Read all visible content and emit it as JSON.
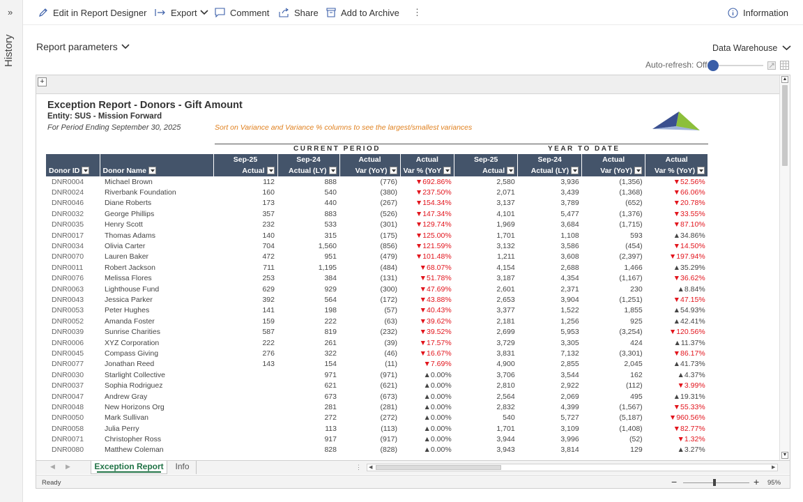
{
  "history": {
    "expand_glyph": "»",
    "label": "History"
  },
  "toolbar": {
    "edit_label": "Edit in Report Designer",
    "export_label": "Export",
    "comment_label": "Comment",
    "share_label": "Share",
    "archive_label": "Add to Archive",
    "more_glyph": "⋮",
    "info_label": "Information"
  },
  "params": {
    "label": "Report parameters"
  },
  "data_source": {
    "label": "Data Warehouse"
  },
  "auto_refresh": {
    "label": "Auto-refresh: Off",
    "state": "off"
  },
  "sheet": {
    "expand_glyph": "+"
  },
  "report": {
    "title": "Exception Report - Donors - Gift Amount",
    "entity": "Entity: SUS - Mission Forward",
    "period": "For Period Ending September 30, 2025",
    "note": "Sort on Variance and Variance % columns to see the largest/smallest variances",
    "band_current": "CURRENT PERIOD",
    "band_ytd": "YEAR TO DATE",
    "columns_top": [
      "",
      "",
      "Sep-25",
      "Sep-24",
      "Actual",
      "Actual",
      "Sep-25",
      "Sep-24",
      "Actual",
      "Actual"
    ],
    "columns": [
      "Donor ID",
      "Donor Name",
      "Actual",
      "Actual (LY)",
      "Var (YoY)",
      "Var % (YoY",
      "Actual",
      "Actual (LY)",
      "Var (YoY)",
      "Var % (YoY)"
    ]
  },
  "rows": [
    [
      "DNR0004",
      "Michael Brown",
      "112",
      "888",
      "(776)",
      "▼692.86%",
      "2,580",
      "3,936",
      "(1,356)",
      "▼52.56%"
    ],
    [
      "DNR0024",
      "Riverbank Foundation",
      "160",
      "540",
      "(380)",
      "▼237.50%",
      "2,071",
      "3,439",
      "(1,368)",
      "▼66.06%"
    ],
    [
      "DNR0046",
      "Diane Roberts",
      "173",
      "440",
      "(267)",
      "▼154.34%",
      "3,137",
      "3,789",
      "(652)",
      "▼20.78%"
    ],
    [
      "DNR0032",
      "George Phillips",
      "357",
      "883",
      "(526)",
      "▼147.34%",
      "4,101",
      "5,477",
      "(1,376)",
      "▼33.55%"
    ],
    [
      "DNR0035",
      "Henry Scott",
      "232",
      "533",
      "(301)",
      "▼129.74%",
      "1,969",
      "3,684",
      "(1,715)",
      "▼87.10%"
    ],
    [
      "DNR0017",
      "Thomas Adams",
      "140",
      "315",
      "(175)",
      "▼125.00%",
      "1,701",
      "1,108",
      "593",
      "▲34.86%"
    ],
    [
      "DNR0034",
      "Olivia Carter",
      "704",
      "1,560",
      "(856)",
      "▼121.59%",
      "3,132",
      "3,586",
      "(454)",
      "▼14.50%"
    ],
    [
      "DNR0070",
      "Lauren Baker",
      "472",
      "951",
      "(479)",
      "▼101.48%",
      "1,211",
      "3,608",
      "(2,397)",
      "▼197.94%"
    ],
    [
      "DNR0011",
      "Robert Jackson",
      "711",
      "1,195",
      "(484)",
      "▼68.07%",
      "4,154",
      "2,688",
      "1,466",
      "▲35.29%"
    ],
    [
      "DNR0076",
      "Melissa Flores",
      "253",
      "384",
      "(131)",
      "▼51.78%",
      "3,187",
      "4,354",
      "(1,167)",
      "▼36.62%"
    ],
    [
      "DNR0063",
      "Lighthouse Fund",
      "629",
      "929",
      "(300)",
      "▼47.69%",
      "2,601",
      "2,371",
      "230",
      "▲8.84%"
    ],
    [
      "DNR0043",
      "Jessica Parker",
      "392",
      "564",
      "(172)",
      "▼43.88%",
      "2,653",
      "3,904",
      "(1,251)",
      "▼47.15%"
    ],
    [
      "DNR0053",
      "Peter Hughes",
      "141",
      "198",
      "(57)",
      "▼40.43%",
      "3,377",
      "1,522",
      "1,855",
      "▲54.93%"
    ],
    [
      "DNR0052",
      "Amanda Foster",
      "159",
      "222",
      "(63)",
      "▼39.62%",
      "2,181",
      "1,256",
      "925",
      "▲42.41%"
    ],
    [
      "DNR0039",
      "Sunrise Charities",
      "587",
      "819",
      "(232)",
      "▼39.52%",
      "2,699",
      "5,953",
      "(3,254)",
      "▼120.56%"
    ],
    [
      "DNR0006",
      "XYZ Corporation",
      "222",
      "261",
      "(39)",
      "▼17.57%",
      "3,729",
      "3,305",
      "424",
      "▲11.37%"
    ],
    [
      "DNR0045",
      "Compass Giving",
      "276",
      "322",
      "(46)",
      "▼16.67%",
      "3,831",
      "7,132",
      "(3,301)",
      "▼86.17%"
    ],
    [
      "DNR0077",
      "Jonathan Reed",
      "143",
      "154",
      "(11)",
      "▼7.69%",
      "4,900",
      "2,855",
      "2,045",
      "▲41.73%"
    ],
    [
      "DNR0030",
      "Starlight Collective",
      "",
      "971",
      "(971)",
      "▲0.00%",
      "3,706",
      "3,544",
      "162",
      "▲4.37%"
    ],
    [
      "DNR0037",
      "Sophia Rodriguez",
      "",
      "621",
      "(621)",
      "▲0.00%",
      "2,810",
      "2,922",
      "(112)",
      "▼3.99%"
    ],
    [
      "DNR0047",
      "Andrew Gray",
      "",
      "673",
      "(673)",
      "▲0.00%",
      "2,564",
      "2,069",
      "495",
      "▲19.31%"
    ],
    [
      "DNR0048",
      "New Horizons Org",
      "",
      "281",
      "(281)",
      "▲0.00%",
      "2,832",
      "4,399",
      "(1,567)",
      "▼55.33%"
    ],
    [
      "DNR0050",
      "Mark Sullivan",
      "",
      "272",
      "(272)",
      "▲0.00%",
      "540",
      "5,727",
      "(5,187)",
      "▼960.56%"
    ],
    [
      "DNR0058",
      "Julia Perry",
      "",
      "113",
      "(113)",
      "▲0.00%",
      "1,701",
      "3,109",
      "(1,408)",
      "▼82.77%"
    ],
    [
      "DNR0071",
      "Christopher Ross",
      "",
      "917",
      "(917)",
      "▲0.00%",
      "3,944",
      "3,996",
      "(52)",
      "▼1.32%"
    ],
    [
      "DNR0080",
      "Matthew Coleman",
      "",
      "828",
      "(828)",
      "▲0.00%",
      "3,943",
      "3,814",
      "129",
      "▲3.27%"
    ]
  ],
  "tabs": {
    "active": "Exception Report",
    "other": "Info"
  },
  "status": {
    "ready": "Ready",
    "zoom": "95%"
  },
  "colors": {
    "header_bg": "#44546a",
    "negative": "#e2141c",
    "tab_green": "#217346",
    "accent_blue": "#3a5ea8"
  }
}
